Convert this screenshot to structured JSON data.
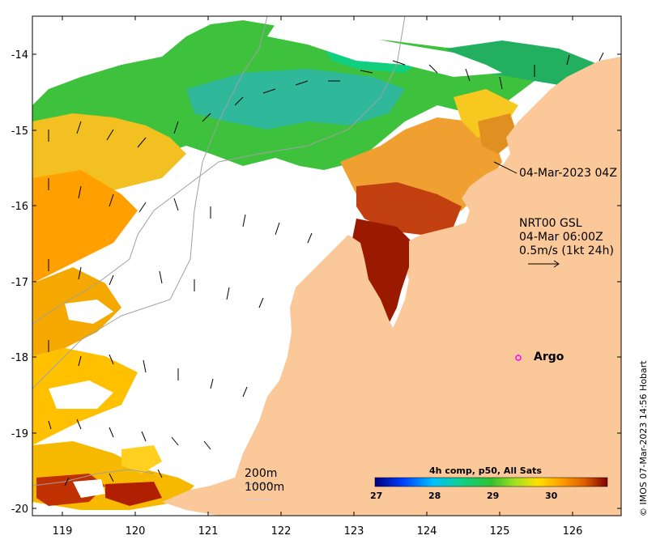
{
  "map": {
    "lon_ticks": [
      "119",
      "120",
      "121",
      "122",
      "123",
      "124",
      "125",
      "126"
    ],
    "lat_ticks": [
      "-14",
      "-15",
      "-16",
      "-17",
      "-18",
      "-19",
      "-20"
    ],
    "land_color": "#fbc999",
    "nodata_color": "#ffffff",
    "arrow_color": "#000000",
    "contour_color": "#a0a0a0"
  },
  "annotations": {
    "satellite_time": "04-Mar-2023 04Z",
    "current_product": "NRT00 GSL",
    "current_time": "04-Mar 06:00Z",
    "vector_scale": "0.5m/s (1kt 24h)",
    "argo_label": "Argo",
    "argo_marker_color": "#ff00ff",
    "isobath_200": "200m",
    "isobath_1000": "1000m"
  },
  "colorbar": {
    "title": "4h comp, p50, All Sats",
    "ticks": [
      "27",
      "28",
      "29",
      "30"
    ],
    "colors": [
      "#00007f",
      "#0040ff",
      "#00c0ff",
      "#10d080",
      "#30c030",
      "#a0e020",
      "#ffe000",
      "#ffa000",
      "#e06000",
      "#a01000",
      "#800000"
    ]
  },
  "credit": "© IMOS 07-Mar-2023 14:56 Hobart"
}
